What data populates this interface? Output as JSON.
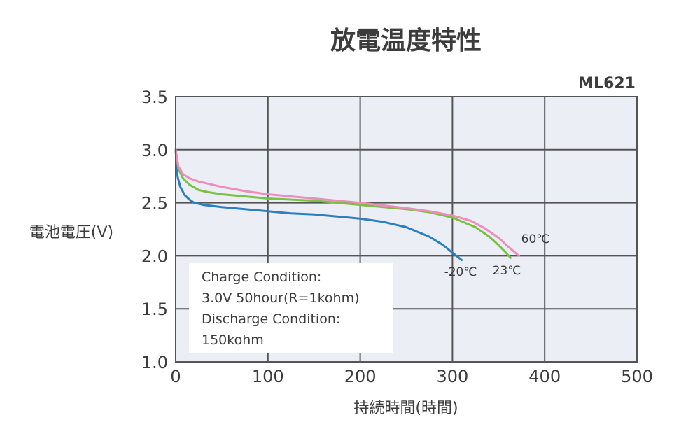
{
  "chart_data": {
    "type": "line",
    "title": "放電温度特性",
    "model": "ML621",
    "xlabel": "持続時間(時間)",
    "ylabel": "電池電圧(V)",
    "xlim": [
      0,
      500
    ],
    "ylim": [
      1.0,
      3.5
    ],
    "x_ticks": [
      "0",
      "100",
      "200",
      "300",
      "400",
      "500"
    ],
    "y_ticks": [
      "1.0",
      "1.5",
      "2.0",
      "2.5",
      "3.0",
      "3.5"
    ],
    "grid": true,
    "annotation": [
      "Charge Condition:",
      "3.0V 50hour(R=1kohm)",
      "Discharge Condition:",
      "150kohm"
    ],
    "series": [
      {
        "name": "-20℃",
        "color": "#2a7fc3",
        "x": [
          0,
          2,
          5,
          10,
          15,
          20,
          30,
          50,
          75,
          100,
          125,
          150,
          175,
          200,
          225,
          250,
          275,
          290,
          300,
          310
        ],
        "y": [
          3.0,
          2.75,
          2.65,
          2.57,
          2.53,
          2.5,
          2.48,
          2.46,
          2.44,
          2.42,
          2.4,
          2.39,
          2.37,
          2.35,
          2.32,
          2.27,
          2.18,
          2.1,
          2.03,
          1.96
        ]
      },
      {
        "name": "23℃",
        "color": "#7ac143",
        "x": [
          0,
          3,
          8,
          15,
          25,
          35,
          50,
          75,
          100,
          150,
          200,
          250,
          275,
          300,
          325,
          340,
          350,
          358,
          363
        ],
        "y": [
          3.0,
          2.82,
          2.73,
          2.67,
          2.62,
          2.6,
          2.58,
          2.56,
          2.54,
          2.52,
          2.48,
          2.44,
          2.41,
          2.36,
          2.27,
          2.18,
          2.1,
          2.03,
          1.98
        ]
      },
      {
        "name": "60℃",
        "color": "#ee8cbc",
        "x": [
          0,
          3,
          8,
          15,
          25,
          35,
          50,
          75,
          100,
          150,
          200,
          250,
          275,
          300,
          320,
          335,
          350,
          360,
          368,
          372
        ],
        "y": [
          3.0,
          2.84,
          2.77,
          2.73,
          2.7,
          2.68,
          2.65,
          2.61,
          2.58,
          2.54,
          2.5,
          2.45,
          2.42,
          2.38,
          2.33,
          2.26,
          2.17,
          2.09,
          2.03,
          2.0
        ]
      }
    ]
  }
}
